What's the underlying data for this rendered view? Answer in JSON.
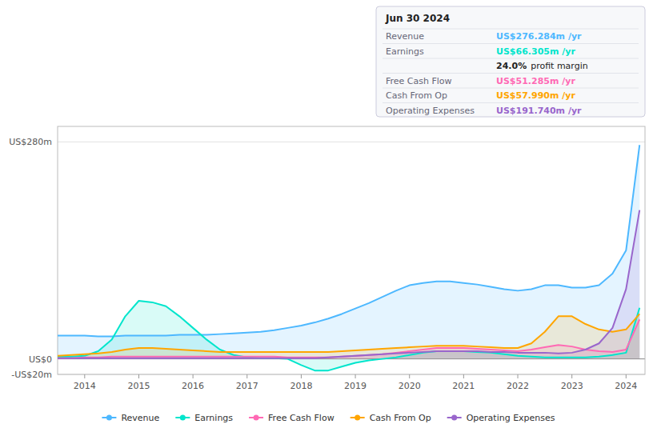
{
  "chart_data": {
    "type": "area",
    "x": [
      2013.5,
      2013.75,
      2014.0,
      2014.25,
      2014.5,
      2014.75,
      2015.0,
      2015.25,
      2015.5,
      2015.75,
      2016.0,
      2016.25,
      2016.5,
      2016.75,
      2017.0,
      2017.25,
      2017.5,
      2017.75,
      2018.0,
      2018.25,
      2018.5,
      2018.75,
      2019.0,
      2019.25,
      2019.5,
      2019.75,
      2020.0,
      2020.25,
      2020.5,
      2020.75,
      2021.0,
      2021.25,
      2021.5,
      2021.75,
      2022.0,
      2022.25,
      2022.5,
      2022.75,
      2023.0,
      2023.25,
      2023.5,
      2023.75,
      2024.0,
      2024.25
    ],
    "series": [
      {
        "name": "Revenue",
        "color": "#4db8ff",
        "values": [
          30,
          30,
          30,
          29,
          29,
          30,
          30,
          30,
          30,
          31,
          31,
          31,
          32,
          33,
          34,
          35,
          37,
          40,
          43,
          47,
          52,
          58,
          65,
          72,
          80,
          88,
          95,
          98,
          100,
          100,
          98,
          96,
          93,
          90,
          88,
          90,
          95,
          95,
          92,
          92,
          95,
          110,
          140,
          276
        ]
      },
      {
        "name": "Earnings",
        "color": "#00e5cc",
        "values": [
          3,
          3,
          4,
          10,
          25,
          55,
          75,
          73,
          68,
          55,
          40,
          25,
          12,
          5,
          2,
          1,
          1,
          0,
          -8,
          -15,
          -15,
          -10,
          -5,
          -2,
          0,
          2,
          5,
          8,
          10,
          10,
          10,
          9,
          8,
          6,
          4,
          3,
          2,
          2,
          2,
          2,
          3,
          5,
          8,
          66
        ]
      },
      {
        "name": "Free Cash Flow",
        "color": "#ff69b4",
        "values": [
          1,
          1,
          2,
          2,
          3,
          3,
          3,
          3,
          3,
          3,
          3,
          3,
          3,
          3,
          3,
          3,
          3,
          2,
          2,
          2,
          2,
          3,
          4,
          5,
          6,
          8,
          10,
          12,
          14,
          14,
          14,
          13,
          12,
          11,
          10,
          12,
          15,
          18,
          16,
          12,
          10,
          9,
          12,
          51
        ]
      },
      {
        "name": "Cash From Op",
        "color": "#ffa500",
        "values": [
          4,
          5,
          6,
          7,
          9,
          12,
          14,
          14,
          13,
          12,
          11,
          10,
          9,
          9,
          9,
          9,
          9,
          9,
          9,
          9,
          9,
          10,
          11,
          12,
          13,
          14,
          15,
          16,
          17,
          17,
          17,
          16,
          15,
          14,
          14,
          20,
          35,
          55,
          55,
          45,
          38,
          35,
          38,
          58
        ]
      },
      {
        "name": "Operating Expenses",
        "color": "#9966cc",
        "values": [
          1,
          1,
          1,
          1,
          1,
          1,
          1,
          1,
          1,
          1,
          1,
          1,
          1,
          1,
          1,
          1,
          1,
          1,
          1,
          1,
          2,
          3,
          4,
          5,
          6,
          7,
          8,
          9,
          10,
          10,
          10,
          10,
          9,
          9,
          8,
          8,
          8,
          7,
          8,
          12,
          20,
          40,
          90,
          192
        ]
      }
    ],
    "xlim": [
      2013.5,
      2024.35
    ],
    "xticks": [
      2014,
      2015,
      2016,
      2017,
      2018,
      2019,
      2020,
      2021,
      2022,
      2023,
      2024
    ],
    "ylim": [
      -20,
      300
    ],
    "yticks": [
      {
        "value": -20,
        "label": "-US$20m"
      },
      {
        "value": 0,
        "label": "US$0"
      },
      {
        "value": 280,
        "label": "US$280m"
      }
    ],
    "grid": true,
    "legend": "bottom",
    "annotations": [
      "Jun 30 2024",
      "Revenue",
      "US$276.284m /yr",
      "Earnings",
      "US$66.305m /yr",
      "24.0%",
      "profit margin",
      "Free Cash Flow",
      "US$51.285m /yr",
      "Cash From Op",
      "US$57.990m /yr",
      "Operating Expenses",
      "US$191.740m /yr"
    ]
  }
}
